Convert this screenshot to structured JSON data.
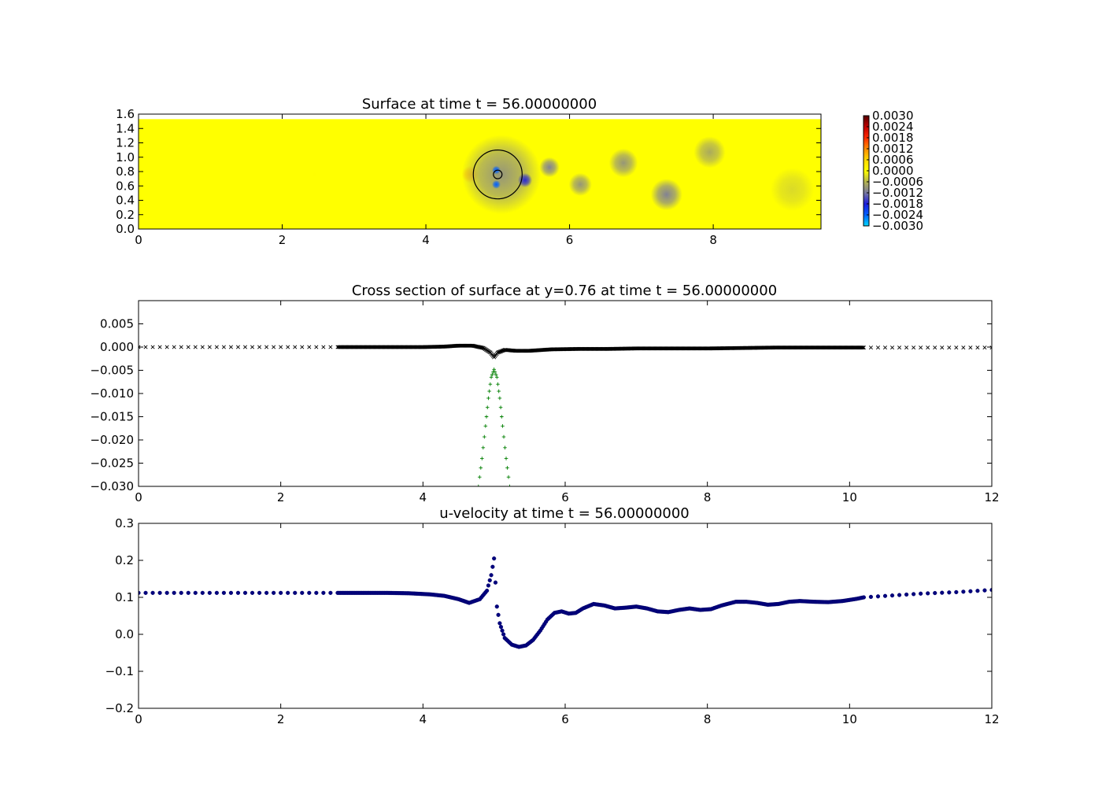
{
  "chart_data": [
    {
      "type": "heatmap",
      "title": "Surface at time t =    56.00000000",
      "xlim": [
        0,
        9.5
      ],
      "ylim": [
        0,
        1.6
      ],
      "xticks": [
        "0",
        "2",
        "4",
        "6",
        "8"
      ],
      "yticks": [
        "0.0",
        "0.2",
        "0.4",
        "0.6",
        "0.8",
        "1.0",
        "1.2",
        "1.4",
        "1.6"
      ],
      "domain_ymax": 1.53,
      "colorbar": {
        "range": [
          -0.003,
          0.003
        ],
        "ticks": [
          "0.0030",
          "0.0024",
          "0.0018",
          "0.0012",
          "0.0006",
          "0.0000",
          "−0.0006",
          "−0.0012",
          "−0.0018",
          "−0.0024",
          "−0.0030"
        ],
        "colors": [
          "#550000",
          "#c00000",
          "#ff2a00",
          "#ff8c00",
          "#ffd800",
          "#ffff00",
          "#b4b450",
          "#7878a0",
          "#1c1cdc",
          "#0060ff",
          "#00d8ff"
        ]
      },
      "background_value": 0.0,
      "features": [
        {
          "x": 2.45,
          "y": 0.76,
          "v": 2e-05,
          "r": 0.03
        },
        {
          "x": 4.62,
          "y": 0.76,
          "v": 0.0007,
          "r": 0.12
        },
        {
          "x": 5.05,
          "y": 0.76,
          "v": -0.0009,
          "r": 0.55
        },
        {
          "x": 4.98,
          "y": 0.82,
          "v": -0.0024,
          "r": 0.06
        },
        {
          "x": 4.98,
          "y": 0.62,
          "v": -0.0024,
          "r": 0.06
        },
        {
          "x": 5.38,
          "y": 0.68,
          "v": -0.0017,
          "r": 0.1
        },
        {
          "x": 5.72,
          "y": 0.86,
          "v": -0.0011,
          "r": 0.14
        },
        {
          "x": 6.15,
          "y": 0.62,
          "v": -0.0009,
          "r": 0.16
        },
        {
          "x": 6.75,
          "y": 0.92,
          "v": -0.0009,
          "r": 0.2
        },
        {
          "x": 7.35,
          "y": 0.48,
          "v": -0.0011,
          "r": 0.22
        },
        {
          "x": 7.95,
          "y": 1.07,
          "v": -0.0007,
          "r": 0.22
        },
        {
          "x": 9.1,
          "y": 0.55,
          "v": -0.0003,
          "r": 0.3
        }
      ],
      "circles": [
        {
          "x": 5.0,
          "y": 0.76,
          "r": 0.34
        },
        {
          "x": 5.0,
          "y": 0.76,
          "r": 0.06
        }
      ]
    },
    {
      "type": "scatter",
      "title": "Cross section of surface at y=0.76 at time t =    56.00000000",
      "xlim": [
        0,
        12
      ],
      "ylim": [
        -0.03,
        0.01
      ],
      "xticks": [
        "0",
        "2",
        "4",
        "6",
        "8",
        "10",
        "12"
      ],
      "yticks": [
        "0.005",
        "0.000",
        "−0.005",
        "−0.010",
        "−0.015",
        "−0.020",
        "−0.025",
        "−0.030"
      ],
      "series": [
        {
          "marker": "x",
          "color": "#000000",
          "points": [
            [
              0.0,
              0.0
            ],
            [
              0.5,
              0.0
            ],
            [
              1.0,
              0.0
            ],
            [
              1.5,
              0.0
            ],
            [
              2.0,
              0.0
            ],
            [
              2.5,
              0.0
            ],
            [
              2.8,
              0.0
            ],
            [
              3.2,
              0.0
            ],
            [
              3.6,
              0.0
            ],
            [
              4.0,
              0.0
            ],
            [
              4.3,
              0.0001
            ],
            [
              4.5,
              0.0003
            ],
            [
              4.7,
              0.0003
            ],
            [
              4.85,
              -0.0002
            ],
            [
              4.95,
              -0.0012
            ],
            [
              5.0,
              -0.0022
            ],
            [
              5.05,
              -0.0012
            ],
            [
              5.15,
              -0.0006
            ],
            [
              5.3,
              -0.0008
            ],
            [
              5.5,
              -0.0008
            ],
            [
              5.8,
              -0.0005
            ],
            [
              6.2,
              -0.0004
            ],
            [
              6.6,
              -0.0004
            ],
            [
              7.0,
              -0.0003
            ],
            [
              7.5,
              -0.0003
            ],
            [
              8.0,
              -0.0003
            ],
            [
              8.5,
              -0.0002
            ],
            [
              9.0,
              -0.0001
            ],
            [
              9.5,
              -0.0001
            ],
            [
              10.0,
              -0.0001
            ],
            [
              10.2,
              -0.0001
            ],
            [
              10.6,
              -0.0001
            ],
            [
              11.0,
              -0.0001
            ],
            [
              11.5,
              -0.0001
            ],
            [
              12.0,
              -0.0001
            ]
          ]
        },
        {
          "marker": "+",
          "color": "#007f00",
          "points": [
            [
              4.78,
              -0.03
            ],
            [
              4.83,
              -0.024
            ],
            [
              4.88,
              -0.017
            ],
            [
              4.92,
              -0.011
            ],
            [
              4.96,
              -0.0065
            ],
            [
              5.0,
              -0.0048
            ],
            [
              5.04,
              -0.0065
            ],
            [
              5.08,
              -0.011
            ],
            [
              5.12,
              -0.017
            ],
            [
              5.17,
              -0.024
            ],
            [
              5.22,
              -0.03
            ]
          ]
        }
      ]
    },
    {
      "type": "scatter",
      "title": "u-velocity at time t =    56.00000000",
      "xlim": [
        0,
        12
      ],
      "ylim": [
        -0.2,
        0.3
      ],
      "xticks": [
        "0",
        "2",
        "4",
        "6",
        "8",
        "10",
        "12"
      ],
      "yticks": [
        "0.3",
        "0.2",
        "0.1",
        "0.0",
        "−0.1",
        "−0.2"
      ],
      "series": [
        {
          "marker": "o",
          "color": "#00007f",
          "points": [
            [
              0.0,
              0.112
            ],
            [
              1.0,
              0.112
            ],
            [
              2.0,
              0.112
            ],
            [
              2.8,
              0.112
            ],
            [
              3.5,
              0.112
            ],
            [
              3.8,
              0.111
            ],
            [
              4.1,
              0.108
            ],
            [
              4.3,
              0.104
            ],
            [
              4.5,
              0.095
            ],
            [
              4.65,
              0.085
            ],
            [
              4.8,
              0.095
            ],
            [
              4.9,
              0.118
            ],
            [
              4.96,
              0.16
            ],
            [
              5.0,
              0.205
            ],
            [
              5.04,
              0.075
            ],
            [
              5.08,
              0.03
            ],
            [
              5.15,
              -0.01
            ],
            [
              5.25,
              -0.028
            ],
            [
              5.35,
              -0.034
            ],
            [
              5.45,
              -0.03
            ],
            [
              5.55,
              -0.015
            ],
            [
              5.65,
              0.01
            ],
            [
              5.75,
              0.04
            ],
            [
              5.85,
              0.058
            ],
            [
              5.95,
              0.062
            ],
            [
              6.05,
              0.056
            ],
            [
              6.15,
              0.058
            ],
            [
              6.25,
              0.07
            ],
            [
              6.4,
              0.082
            ],
            [
              6.55,
              0.078
            ],
            [
              6.7,
              0.07
            ],
            [
              6.85,
              0.072
            ],
            [
              7.0,
              0.075
            ],
            [
              7.15,
              0.07
            ],
            [
              7.3,
              0.062
            ],
            [
              7.45,
              0.06
            ],
            [
              7.6,
              0.066
            ],
            [
              7.75,
              0.07
            ],
            [
              7.9,
              0.066
            ],
            [
              8.05,
              0.068
            ],
            [
              8.2,
              0.078
            ],
            [
              8.4,
              0.088
            ],
            [
              8.55,
              0.088
            ],
            [
              8.7,
              0.085
            ],
            [
              8.85,
              0.08
            ],
            [
              9.0,
              0.082
            ],
            [
              9.15,
              0.088
            ],
            [
              9.3,
              0.09
            ],
            [
              9.5,
              0.088
            ],
            [
              9.7,
              0.087
            ],
            [
              9.9,
              0.09
            ],
            [
              10.1,
              0.096
            ],
            [
              10.2,
              0.1
            ],
            [
              10.6,
              0.105
            ],
            [
              11.0,
              0.11
            ],
            [
              11.5,
              0.114
            ],
            [
              12.0,
              0.12
            ]
          ]
        }
      ]
    }
  ]
}
